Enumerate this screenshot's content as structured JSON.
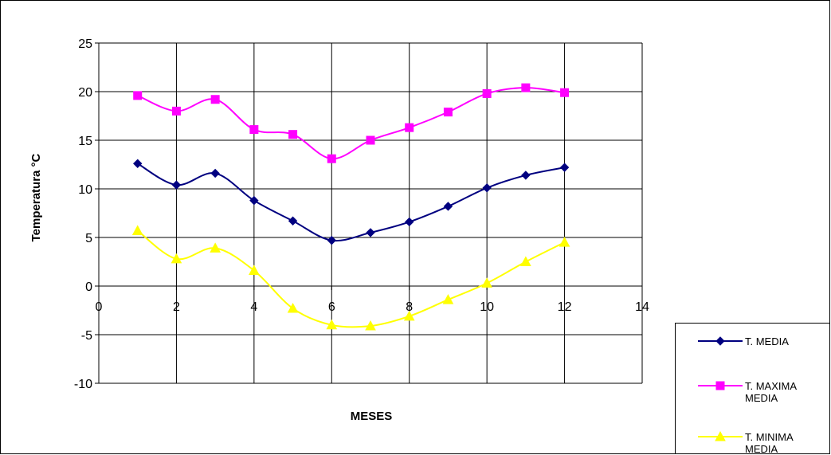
{
  "chart_data": {
    "type": "line",
    "xlabel": "MESES",
    "ylabel": "Temperatura °C",
    "xlim": [
      0,
      14
    ],
    "ylim": [
      -10,
      25
    ],
    "xticks": [
      "0",
      "2",
      "4",
      "6",
      "8",
      "10",
      "12",
      "14"
    ],
    "yticks": [
      "-10",
      "-5",
      "0",
      "5",
      "10",
      "15",
      "20",
      "25"
    ],
    "grid": true,
    "smooth": true,
    "legend_position": "bottom-right",
    "x": [
      1,
      2,
      3,
      4,
      5,
      6,
      7,
      8,
      9,
      10,
      11,
      12
    ],
    "series": [
      {
        "name": "T. MEDIA",
        "name_lines": [
          "T. MEDIA"
        ],
        "color": "#000080",
        "marker": "diamond",
        "values": [
          12.6,
          10.4,
          11.6,
          8.8,
          6.7,
          4.7,
          5.5,
          6.6,
          8.2,
          10.1,
          11.4,
          12.2
        ]
      },
      {
        "name": "T. MAXIMA MEDIA",
        "name_lines": [
          "T. MAXIMA",
          "MEDIA"
        ],
        "color": "#ff00ff",
        "marker": "square",
        "values": [
          19.6,
          18.0,
          19.2,
          16.1,
          15.6,
          13.1,
          15.0,
          16.3,
          17.9,
          19.8,
          20.4,
          19.9
        ]
      },
      {
        "name": "T. MINIMA MEDIA",
        "name_lines": [
          "T. MINIMA",
          "MEDIA"
        ],
        "color": "#ffff00",
        "marker": "triangle",
        "values": [
          5.7,
          2.8,
          3.9,
          1.6,
          -2.3,
          -4.0,
          -4.1,
          -3.1,
          -1.4,
          0.3,
          2.5,
          4.5
        ]
      }
    ]
  }
}
